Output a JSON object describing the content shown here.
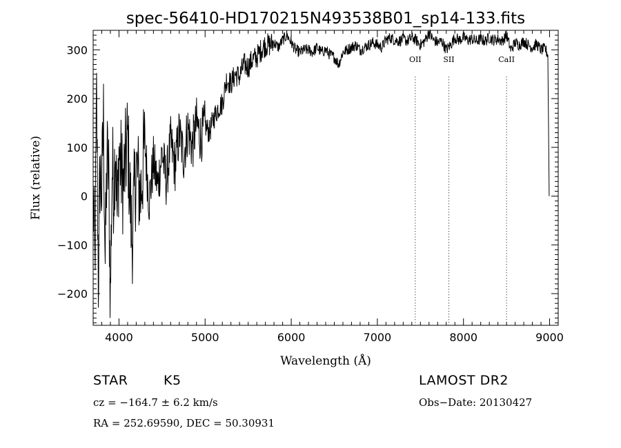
{
  "chart_data": {
    "type": "line",
    "title": "spec-56410-HD170215N493538B01_sp14-133.fits",
    "xlabel": "Wavelength (Å)",
    "ylabel": "Flux (relative)",
    "xlim": [
      3700,
      9100
    ],
    "ylim": [
      -265,
      340
    ],
    "xticks": [
      4000,
      5000,
      6000,
      7000,
      8000,
      9000
    ],
    "yticks": [
      -200,
      -100,
      0,
      100,
      200,
      300
    ],
    "grid": false,
    "series": [
      {
        "points": [
          [
            3700,
            0
          ],
          [
            3720,
            -150
          ],
          [
            3740,
            200
          ],
          [
            3760,
            -170
          ],
          [
            3780,
            50
          ],
          [
            3800,
            10
          ],
          [
            3820,
            160
          ],
          [
            3840,
            -140
          ],
          [
            3860,
            80
          ],
          [
            3880,
            40
          ],
          [
            3900,
            -210
          ],
          [
            3920,
            60
          ],
          [
            3940,
            20
          ],
          [
            3960,
            120
          ],
          [
            3980,
            -50
          ],
          [
            4000,
            90
          ],
          [
            4050,
            20
          ],
          [
            4100,
            120
          ],
          [
            4150,
            -90
          ],
          [
            4200,
            60
          ],
          [
            4250,
            0
          ],
          [
            4300,
            110
          ],
          [
            4350,
            -10
          ],
          [
            4400,
            70
          ],
          [
            4450,
            20
          ],
          [
            4500,
            90
          ],
          [
            4550,
            30
          ],
          [
            4600,
            110
          ],
          [
            4650,
            60
          ],
          [
            4700,
            130
          ],
          [
            4750,
            80
          ],
          [
            4800,
            140
          ],
          [
            4850,
            100
          ],
          [
            4900,
            150
          ],
          [
            4950,
            120
          ],
          [
            5000,
            145
          ],
          [
            5050,
            130
          ],
          [
            5100,
            160
          ],
          [
            5150,
            180
          ],
          [
            5200,
            190
          ],
          [
            5250,
            240
          ],
          [
            5300,
            230
          ],
          [
            5350,
            250
          ],
          [
            5400,
            245
          ],
          [
            5450,
            270
          ],
          [
            5500,
            265
          ],
          [
            5550,
            280
          ],
          [
            5600,
            285
          ],
          [
            5650,
            300
          ],
          [
            5700,
            310
          ],
          [
            5750,
            310
          ],
          [
            5800,
            315
          ],
          [
            5850,
            305
          ],
          [
            5900,
            320
          ],
          [
            5950,
            330
          ],
          [
            6000,
            315
          ],
          [
            6050,
            300
          ],
          [
            6100,
            295
          ],
          [
            6150,
            300
          ],
          [
            6200,
            300
          ],
          [
            6250,
            295
          ],
          [
            6300,
            305
          ],
          [
            6350,
            295
          ],
          [
            6400,
            300
          ],
          [
            6450,
            290
          ],
          [
            6500,
            285
          ],
          [
            6550,
            270
          ],
          [
            6600,
            295
          ],
          [
            6650,
            300
          ],
          [
            6700,
            305
          ],
          [
            6750,
            310
          ],
          [
            6800,
            300
          ],
          [
            6850,
            305
          ],
          [
            6900,
            310
          ],
          [
            6950,
            315
          ],
          [
            7000,
            310
          ],
          [
            7050,
            305
          ],
          [
            7100,
            320
          ],
          [
            7150,
            325
          ],
          [
            7200,
            320
          ],
          [
            7250,
            318
          ],
          [
            7300,
            322
          ],
          [
            7350,
            318
          ],
          [
            7400,
            325
          ],
          [
            7450,
            320
          ],
          [
            7500,
            310
          ],
          [
            7550,
            318
          ],
          [
            7600,
            335
          ],
          [
            7650,
            320
          ],
          [
            7700,
            315
          ],
          [
            7750,
            318
          ],
          [
            7800,
            300
          ],
          [
            7850,
            310
          ],
          [
            7900,
            325
          ],
          [
            7950,
            320
          ],
          [
            8000,
            325
          ],
          [
            8050,
            320
          ],
          [
            8100,
            322
          ],
          [
            8150,
            318
          ],
          [
            8200,
            322
          ],
          [
            8250,
            318
          ],
          [
            8300,
            325
          ],
          [
            8350,
            320
          ],
          [
            8400,
            322
          ],
          [
            8450,
            318
          ],
          [
            8500,
            330
          ],
          [
            8550,
            300
          ],
          [
            8600,
            315
          ],
          [
            8650,
            310
          ],
          [
            8700,
            318
          ],
          [
            8750,
            310
          ],
          [
            8800,
            305
          ],
          [
            8850,
            312
          ],
          [
            8900,
            300
          ],
          [
            8950,
            302
          ],
          [
            8980,
            290
          ],
          [
            8995,
            0
          ]
        ]
      }
    ],
    "lines": [
      {
        "label": "OII",
        "x": 7440
      },
      {
        "label": "SII",
        "x": 7830
      },
      {
        "label": "CaII",
        "x": 8500
      }
    ]
  },
  "info": {
    "class_label": "STAR",
    "subclass": "K5",
    "survey": "LAMOST DR2",
    "redshift": "cz = −164.7 ± 6.2 km/s",
    "obs_date": "Obs−Date: 20130427",
    "coords": "RA = 252.69590, DEC =  50.30931"
  }
}
